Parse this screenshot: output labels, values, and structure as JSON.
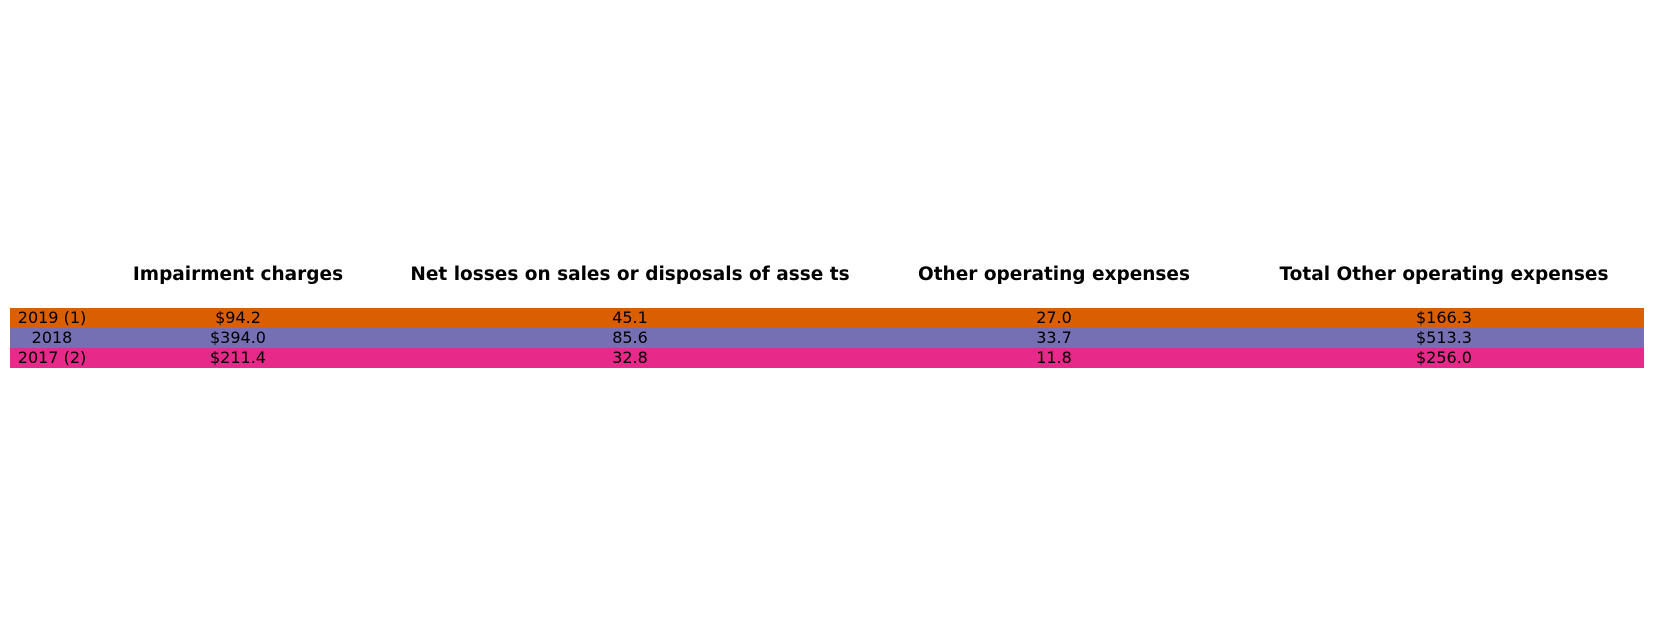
{
  "chart_data": {
    "type": "table",
    "columns": [
      "Impairment charges",
      "Net losses on sales or disposals of asse ts",
      "Other operating expenses",
      "Total Other operating expenses"
    ],
    "rows": [
      {
        "label": "2019 (1)",
        "color": "#d95f02",
        "values": [
          "$94.2",
          "45.1",
          "27.0",
          "$166.3"
        ]
      },
      {
        "label": "2018",
        "color": "#7570b3",
        "values": [
          "$394.0",
          "85.6",
          "33.7",
          "$513.3"
        ]
      },
      {
        "label": "2017 (2)",
        "color": "#e7298a",
        "values": [
          "$211.4",
          "32.8",
          "11.8",
          "$256.0"
        ]
      }
    ]
  }
}
